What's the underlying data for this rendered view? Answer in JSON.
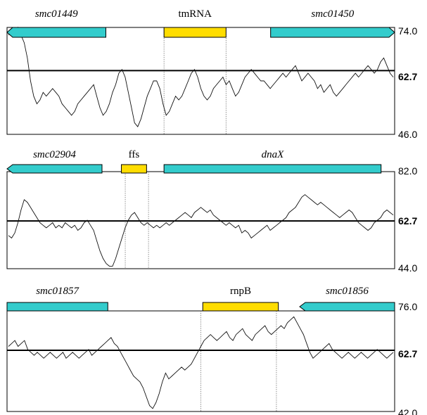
{
  "chart_data": [
    {
      "type": "line",
      "panel": "top",
      "genes": [
        {
          "name": "smc01449",
          "italic": true,
          "color": "#33cccc",
          "strand": "-",
          "start": 0,
          "end": 0.255
        },
        {
          "name": "tmRNA",
          "italic": false,
          "color": "#ffdd00",
          "strand": "none",
          "start": 0.405,
          "end": 0.565
        },
        {
          "name": "smc01450",
          "italic": true,
          "color": "#33cccc",
          "strand": "+",
          "start": 0.68,
          "end": 1.0
        }
      ],
      "axis_ticks": [
        "74.0",
        "62.7",
        "46.0"
      ],
      "ymin": 46.0,
      "ymax": 74.0,
      "mean": 62.7,
      "guides": [
        0.405,
        0.565
      ],
      "series": [
        {
          "values": [
            72,
            73,
            72,
            74,
            72,
            70,
            66,
            60,
            56,
            54,
            55,
            57,
            56,
            57,
            58,
            57,
            56,
            54,
            53,
            52,
            51,
            52,
            54,
            55,
            56,
            57,
            58,
            59,
            56,
            53,
            51,
            52,
            54,
            57,
            59,
            62,
            63,
            61,
            57,
            53,
            49,
            48,
            50,
            53,
            56,
            58,
            60,
            60,
            58,
            54,
            51,
            52,
            54,
            56,
            55,
            56,
            58,
            60,
            62,
            63,
            61,
            58,
            56,
            55,
            56,
            58,
            59,
            60,
            61,
            59,
            60,
            58,
            56,
            57,
            59,
            61,
            62,
            63,
            62,
            61,
            60,
            60,
            59,
            58,
            59,
            60,
            61,
            62,
            61,
            62,
            63,
            64,
            62,
            60,
            61,
            62,
            61,
            60,
            58,
            59,
            57,
            58,
            59,
            57,
            56,
            57,
            58,
            59,
            60,
            61,
            62,
            61,
            62,
            63,
            64,
            63,
            62,
            63,
            65,
            66,
            64,
            62,
            61
          ]
        }
      ]
    },
    {
      "type": "line",
      "panel": "middle",
      "genes": [
        {
          "name": "smc02904",
          "italic": true,
          "color": "#33cccc",
          "strand": "-",
          "start": 0,
          "end": 0.245
        },
        {
          "name": "ffs",
          "italic": false,
          "color": "#ffdd00",
          "strand": "none",
          "start": 0.295,
          "end": 0.36
        },
        {
          "name": "dnaX",
          "italic": true,
          "color": "#33cccc",
          "strand": "none",
          "start": 0.405,
          "end": 0.965
        }
      ],
      "axis_ticks": [
        "82.0",
        "62.7",
        "44.0"
      ],
      "ymin": 44.0,
      "ymax": 82.0,
      "mean": 62.7,
      "guides": [
        0.305,
        0.365
      ],
      "series": [
        {
          "values": [
            57,
            56,
            58,
            62,
            67,
            71,
            70,
            68,
            66,
            64,
            62,
            61,
            60,
            61,
            62,
            60,
            61,
            60,
            62,
            61,
            60,
            61,
            59,
            60,
            62,
            63,
            61,
            59,
            55,
            51,
            48,
            46,
            45,
            45,
            48,
            52,
            56,
            60,
            63,
            65,
            66,
            64,
            62,
            61,
            62,
            61,
            60,
            61,
            60,
            61,
            62,
            61,
            62,
            63,
            64,
            65,
            66,
            65,
            64,
            66,
            67,
            68,
            67,
            66,
            67,
            65,
            64,
            63,
            62,
            61,
            62,
            61,
            60,
            61,
            58,
            59,
            58,
            56,
            57,
            58,
            59,
            60,
            61,
            59,
            60,
            61,
            62,
            63,
            64,
            66,
            67,
            68,
            70,
            72,
            73,
            72,
            71,
            70,
            69,
            70,
            69,
            68,
            67,
            66,
            65,
            64,
            65,
            66,
            67,
            66,
            64,
            62,
            61,
            60,
            59,
            60,
            62,
            63,
            64,
            66,
            67,
            66,
            65
          ]
        }
      ]
    },
    {
      "type": "line",
      "panel": "bottom",
      "genes": [
        {
          "name": "smc01857",
          "italic": true,
          "color": "#33cccc",
          "strand": "none",
          "start": 0,
          "end": 0.26
        },
        {
          "name": "rnpB",
          "italic": false,
          "color": "#ffdd00",
          "strand": "none",
          "start": 0.505,
          "end": 0.7
        },
        {
          "name": "smc01856",
          "italic": true,
          "color": "#33cccc",
          "strand": "-",
          "start": 0.755,
          "end": 1.0
        }
      ],
      "axis_ticks": [
        "76.0",
        "62.7",
        "42.0"
      ],
      "ymin": 42.0,
      "ymax": 76.0,
      "mean": 62.7,
      "guides": [
        0.5,
        0.695
      ],
      "series": [
        {
          "values": [
            64,
            65,
            66,
            64,
            65,
            66,
            63,
            62,
            61,
            62,
            61,
            60,
            61,
            62,
            61,
            60,
            61,
            62,
            60,
            61,
            62,
            61,
            60,
            61,
            62,
            63,
            61,
            62,
            63,
            64,
            65,
            66,
            67,
            65,
            64,
            62,
            60,
            58,
            56,
            54,
            53,
            52,
            50,
            47,
            44,
            43,
            45,
            48,
            52,
            55,
            53,
            54,
            55,
            56,
            57,
            56,
            57,
            58,
            60,
            62,
            64,
            66,
            67,
            68,
            67,
            66,
            67,
            68,
            69,
            67,
            66,
            68,
            69,
            70,
            68,
            67,
            66,
            68,
            69,
            70,
            71,
            69,
            68,
            69,
            70,
            71,
            70,
            72,
            73,
            74,
            72,
            70,
            68,
            65,
            62,
            60,
            61,
            62,
            63,
            64,
            65,
            63,
            62,
            61,
            60,
            61,
            62,
            61,
            60,
            61,
            62,
            61,
            60,
            61,
            62,
            63,
            62,
            61,
            60,
            61,
            62
          ]
        }
      ]
    }
  ]
}
